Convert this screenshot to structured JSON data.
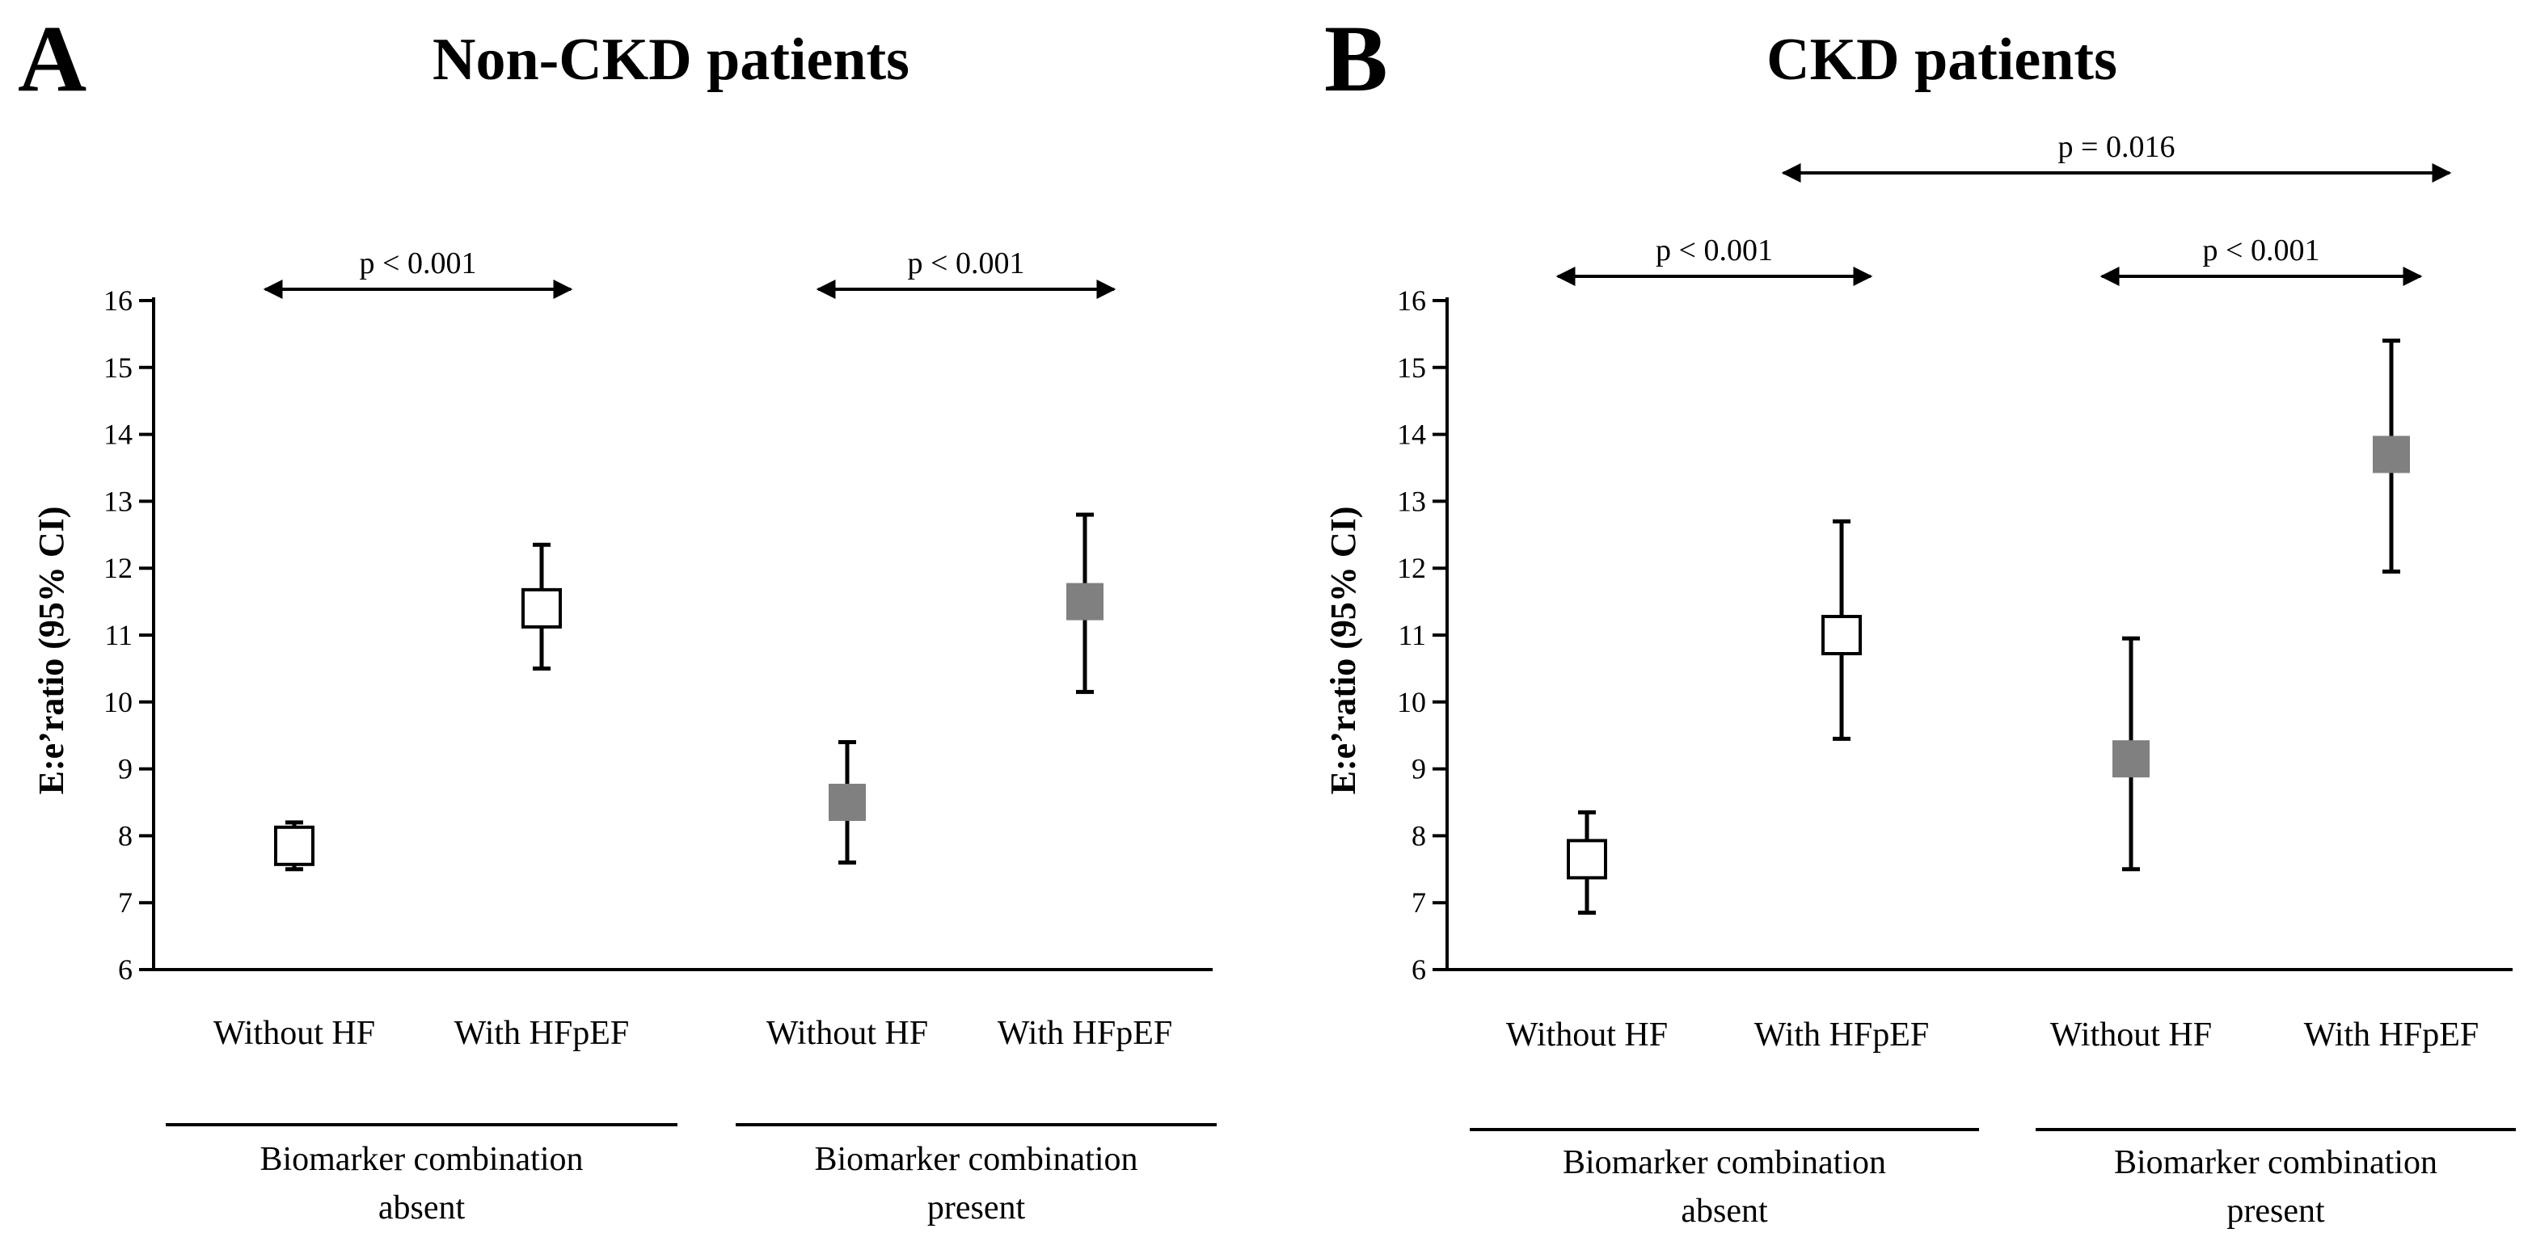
{
  "colors": {
    "absent_marker_fill": "#ffffff",
    "present_marker_fill": "#808080",
    "stroke": "#000000"
  },
  "chart_data": [
    {
      "type": "scatter",
      "panel": "A",
      "title": "Non-CKD patients",
      "ylabel": "E:e’ratio (95% CI)",
      "xlabel": "",
      "ylim": [
        6,
        16
      ],
      "yticks": [
        6,
        7,
        8,
        9,
        10,
        11,
        12,
        13,
        14,
        15,
        16
      ],
      "grid": false,
      "categories": [
        "Without HF",
        "With HFpEF",
        "Without HF",
        "With HFpEF"
      ],
      "groups": [
        {
          "label": "Biomarker combination\nabsent",
          "categories": [
            0,
            1
          ]
        },
        {
          "label": "Biomarker combination\npresent",
          "categories": [
            2,
            3
          ]
        }
      ],
      "points": [
        {
          "category": 0,
          "group": "absent",
          "value": 7.85,
          "ci": [
            7.5,
            8.2
          ]
        },
        {
          "category": 1,
          "group": "absent",
          "value": 11.4,
          "ci": [
            10.5,
            12.35
          ]
        },
        {
          "category": 2,
          "group": "present",
          "value": 8.5,
          "ci": [
            7.6,
            9.4
          ]
        },
        {
          "category": 3,
          "group": "present",
          "value": 11.5,
          "ci": [
            10.15,
            12.8
          ]
        }
      ],
      "comparisons": [
        {
          "from": 0,
          "to": 1,
          "label": "p < 0.001",
          "level": 0
        },
        {
          "from": 2,
          "to": 3,
          "label": "p < 0.001",
          "level": 0
        }
      ]
    },
    {
      "type": "scatter",
      "panel": "B",
      "title": "CKD patients",
      "ylabel": "E:e’ratio (95% CI)",
      "xlabel": "",
      "ylim": [
        6,
        16
      ],
      "yticks": [
        6,
        7,
        8,
        9,
        10,
        11,
        12,
        13,
        14,
        15,
        16
      ],
      "grid": false,
      "categories": [
        "Without HF",
        "With HFpEF",
        "Without HF",
        "With HFpEF"
      ],
      "groups": [
        {
          "label": "Biomarker combination\nabsent",
          "categories": [
            0,
            1
          ]
        },
        {
          "label": "Biomarker combination\npresent",
          "categories": [
            2,
            3
          ]
        }
      ],
      "points": [
        {
          "category": 0,
          "group": "absent",
          "value": 7.65,
          "ci": [
            6.85,
            8.35
          ]
        },
        {
          "category": 1,
          "group": "absent",
          "value": 11.0,
          "ci": [
            9.45,
            12.7
          ]
        },
        {
          "category": 2,
          "group": "present",
          "value": 9.15,
          "ci": [
            7.5,
            10.95
          ]
        },
        {
          "category": 3,
          "group": "present",
          "value": 13.7,
          "ci": [
            11.95,
            15.4
          ]
        }
      ],
      "comparisons": [
        {
          "from": 0,
          "to": 1,
          "label": "p < 0.001",
          "level": 0
        },
        {
          "from": 2,
          "to": 3,
          "label": "p < 0.001",
          "level": 0
        },
        {
          "from": 1,
          "to": 3,
          "label": "p = 0.016",
          "level": 1
        }
      ]
    }
  ]
}
